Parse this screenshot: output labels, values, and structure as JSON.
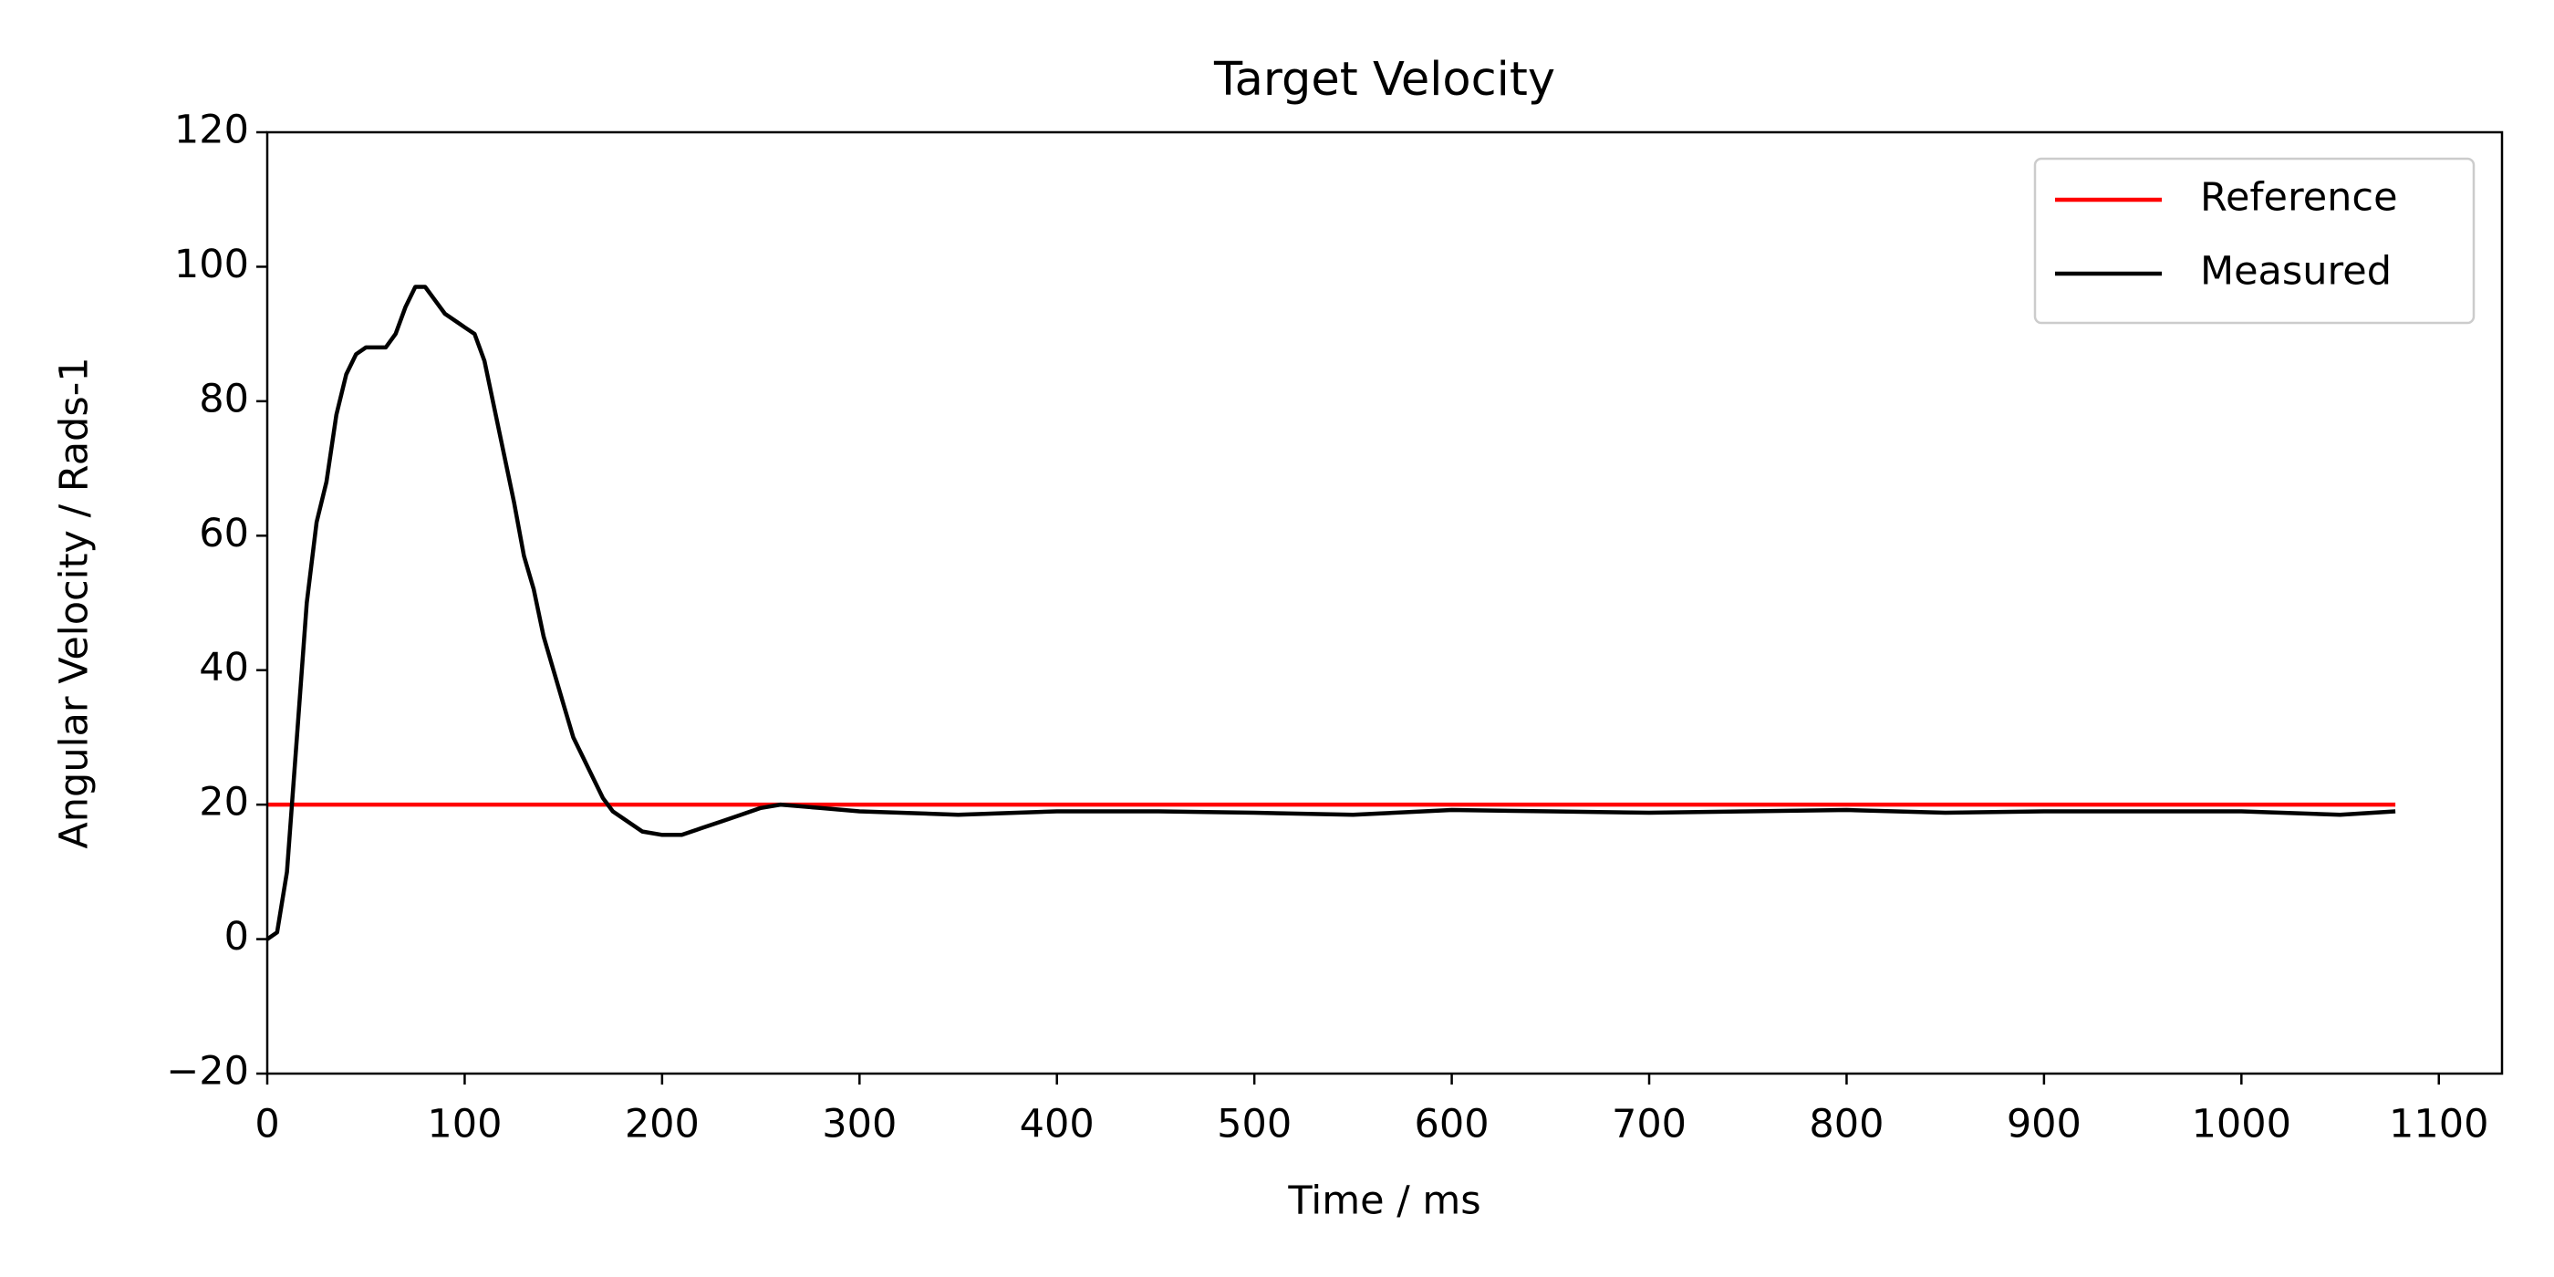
{
  "chart_data": {
    "type": "line",
    "title": "Target Velocity",
    "xlabel": "Time / ms",
    "ylabel": "Angular Velocity / Rads-1",
    "xlim": [
      0,
      1132
    ],
    "ylim": [
      -20,
      120
    ],
    "xticks": [
      0,
      100,
      200,
      300,
      400,
      500,
      600,
      700,
      800,
      900,
      1000,
      1100
    ],
    "yticks": [
      {
        "value": -20,
        "label": "−20"
      },
      0,
      20,
      40,
      60,
      80,
      100,
      120
    ],
    "legend": "upper right",
    "grid": false,
    "series": [
      {
        "name": "Reference",
        "color": "#ff0000",
        "x": [
          0,
          1078
        ],
        "values": [
          20,
          20
        ]
      },
      {
        "name": "Measured",
        "color": "#000000",
        "x": [
          0,
          5,
          10,
          15,
          20,
          25,
          30,
          35,
          40,
          45,
          50,
          55,
          60,
          65,
          70,
          75,
          80,
          85,
          90,
          95,
          100,
          105,
          110,
          115,
          120,
          125,
          130,
          135,
          140,
          145,
          150,
          155,
          160,
          165,
          170,
          175,
          180,
          190,
          200,
          210,
          220,
          230,
          240,
          250,
          260,
          280,
          300,
          350,
          400,
          450,
          500,
          550,
          600,
          650,
          700,
          750,
          800,
          850,
          900,
          950,
          1000,
          1050,
          1078
        ],
        "values": [
          0,
          1,
          10,
          30,
          50,
          62,
          68,
          78,
          84,
          87,
          88,
          88,
          88,
          90,
          94,
          97,
          97,
          95,
          93,
          92,
          91,
          90,
          86,
          79,
          72,
          65,
          57,
          52,
          45,
          40,
          35,
          30,
          27,
          24,
          21,
          19,
          18,
          16,
          15.5,
          15.5,
          16.5,
          17.5,
          18.5,
          19.5,
          20,
          19.5,
          19,
          18.5,
          19,
          19,
          18.8,
          18.5,
          19.2,
          19,
          18.8,
          19,
          19.2,
          18.8,
          19,
          19,
          19,
          18.5,
          19
        ]
      }
    ]
  }
}
